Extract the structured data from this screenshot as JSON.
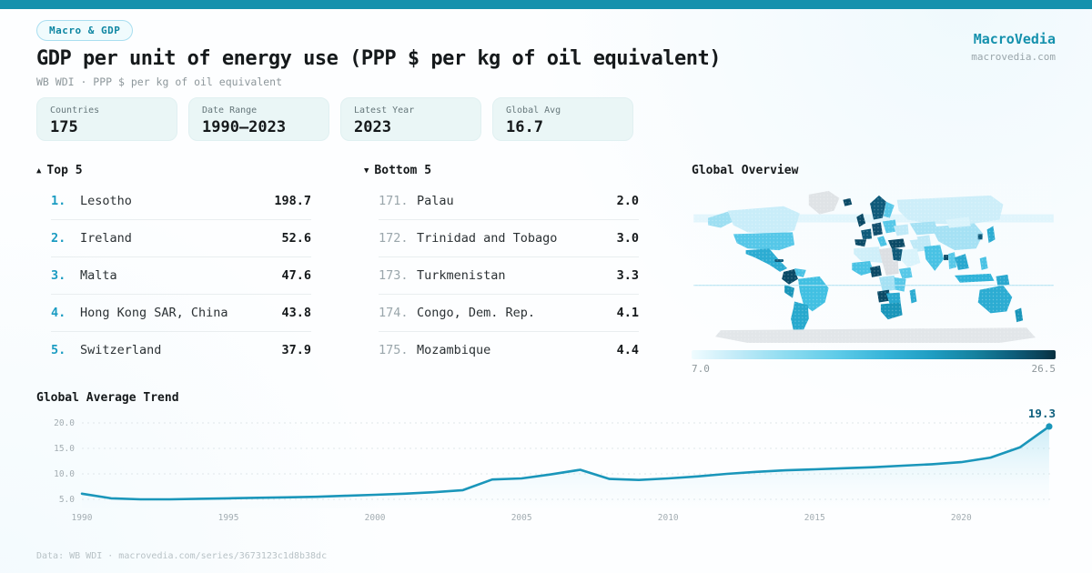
{
  "colors": {
    "accent": "#1591ad",
    "line": "#1a96ba",
    "end_label": "#0e5f7d",
    "rank_highlight": "#1b9cc2",
    "card_bg": "#eaf6f6",
    "legend_dark": "#082f3f",
    "legend_light": "#f0fcff"
  },
  "badge": {
    "label": "Macro & GDP"
  },
  "brand": {
    "name": "MacroVedia",
    "domain": "macrovedia.com"
  },
  "header": {
    "title": "GDP per unit of energy use (PPP $ per kg of oil equivalent)",
    "subtitle": "WB WDI · PPP $ per kg of oil equivalent"
  },
  "stats": [
    {
      "label": "Countries",
      "value": "175"
    },
    {
      "label": "Date Range",
      "value": "1990—2023"
    },
    {
      "label": "Latest Year",
      "value": "2023"
    },
    {
      "label": "Global Avg",
      "value": "16.7"
    }
  ],
  "top5": {
    "arrow": "▲",
    "title": "Top 5",
    "items": [
      {
        "rank": "1.",
        "name": "Lesotho",
        "value": "198.7"
      },
      {
        "rank": "2.",
        "name": "Ireland",
        "value": "52.6"
      },
      {
        "rank": "3.",
        "name": "Malta",
        "value": "47.6"
      },
      {
        "rank": "4.",
        "name": "Hong Kong SAR, China",
        "value": "43.8"
      },
      {
        "rank": "5.",
        "name": "Switzerland",
        "value": "37.9"
      }
    ]
  },
  "bottom5": {
    "arrow": "▼",
    "title": "Bottom 5",
    "items": [
      {
        "rank": "171.",
        "name": "Palau",
        "value": "2.0"
      },
      {
        "rank": "172.",
        "name": "Trinidad and Tobago",
        "value": "3.0"
      },
      {
        "rank": "173.",
        "name": "Turkmenistan",
        "value": "3.3"
      },
      {
        "rank": "174.",
        "name": "Congo, Dem. Rep.",
        "value": "4.1"
      },
      {
        "rank": "175.",
        "name": "Mozambique",
        "value": "4.4"
      }
    ]
  },
  "map": {
    "title": "Global Overview",
    "legend_min": "7.0",
    "legend_max": "26.5"
  },
  "trend": {
    "title": "Global Average Trend"
  },
  "chart_data": [
    {
      "type": "line",
      "title": "Global Average Trend",
      "x": [
        1990,
        1991,
        1992,
        1993,
        1994,
        1995,
        1996,
        1997,
        1998,
        1999,
        2000,
        2001,
        2002,
        2003,
        2004,
        2005,
        2006,
        2007,
        2008,
        2009,
        2010,
        2011,
        2012,
        2013,
        2014,
        2015,
        2016,
        2017,
        2018,
        2019,
        2020,
        2021,
        2022,
        2023
      ],
      "series": [
        {
          "name": "Global Average",
          "values": [
            6.1,
            5.2,
            5.0,
            5.0,
            5.1,
            5.2,
            5.3,
            5.4,
            5.5,
            5.7,
            5.9,
            6.1,
            6.4,
            6.8,
            8.9,
            9.1,
            9.9,
            10.8,
            9.0,
            8.8,
            9.1,
            9.5,
            10.0,
            10.4,
            10.7,
            10.9,
            11.1,
            11.3,
            11.6,
            11.9,
            12.3,
            13.2,
            15.2,
            19.3
          ]
        }
      ],
      "end_label": "19.3",
      "xlabel": "",
      "ylabel": "",
      "ylim": [
        3,
        22
      ],
      "yticks": [
        5,
        10,
        15,
        20
      ],
      "xticks": [
        1990,
        1995,
        2000,
        2005,
        2010,
        2015,
        2020
      ],
      "grid": "dashed-horizontal",
      "legend_position": "none"
    },
    {
      "type": "heatmap",
      "title": "Global Overview",
      "note": "world choropleth of GDP per unit of energy use, 2023",
      "scale_min": 7.0,
      "scale_max": 26.5
    }
  ],
  "footer": {
    "text": "Data: WB WDI · macrovedia.com/series/3673123c1d8b38dc"
  }
}
